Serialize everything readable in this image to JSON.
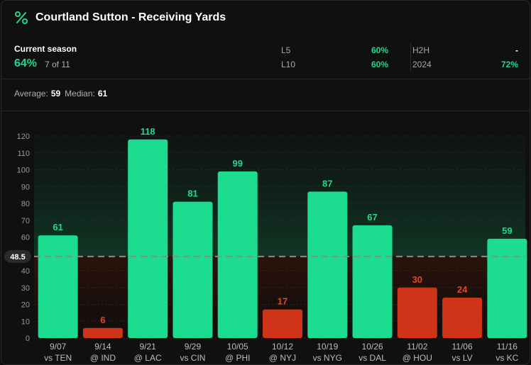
{
  "header": {
    "title": "Courtland Sutton - Receiving Yards",
    "icon": "percent-icon"
  },
  "stats": {
    "current_season_label": "Current season",
    "current_season_pct": "64%",
    "current_season_count": "7 of 11",
    "l5_label": "L5",
    "l5_value": "60%",
    "l10_label": "L10",
    "l10_value": "60%",
    "h2h_label": "H2H",
    "h2h_value": "-",
    "season_label": "2024",
    "season_value": "72%"
  },
  "summary": {
    "average_label": "Average:",
    "average_value": "59",
    "median_label": "Median:",
    "median_value": "61"
  },
  "colors": {
    "over": "#1bdc8f",
    "under": "#cf3418",
    "over_text": "#1fd98e",
    "under_text": "#e0482a"
  },
  "chart_data": {
    "type": "bar",
    "title": "Courtland Sutton - Receiving Yards",
    "ylim": [
      0,
      120
    ],
    "yticks": [
      0,
      10,
      20,
      30,
      40,
      50,
      60,
      70,
      80,
      90,
      100,
      110,
      120
    ],
    "line": 48.5,
    "line_label": "48.5",
    "categories": [
      {
        "date": "9/07",
        "opp": "vs TEN"
      },
      {
        "date": "9/14",
        "opp": "@ IND"
      },
      {
        "date": "9/21",
        "opp": "@ LAC"
      },
      {
        "date": "9/29",
        "opp": "vs CIN"
      },
      {
        "date": "10/05",
        "opp": "@ PHI"
      },
      {
        "date": "10/12",
        "opp": "@ NYJ"
      },
      {
        "date": "10/19",
        "opp": "vs NYG"
      },
      {
        "date": "10/26",
        "opp": "vs DAL"
      },
      {
        "date": "11/02",
        "opp": "@ HOU"
      },
      {
        "date": "11/06",
        "opp": "vs LV"
      },
      {
        "date": "11/16",
        "opp": "vs KC"
      }
    ],
    "values": [
      61,
      6,
      118,
      81,
      99,
      17,
      87,
      67,
      30,
      24,
      59
    ]
  }
}
